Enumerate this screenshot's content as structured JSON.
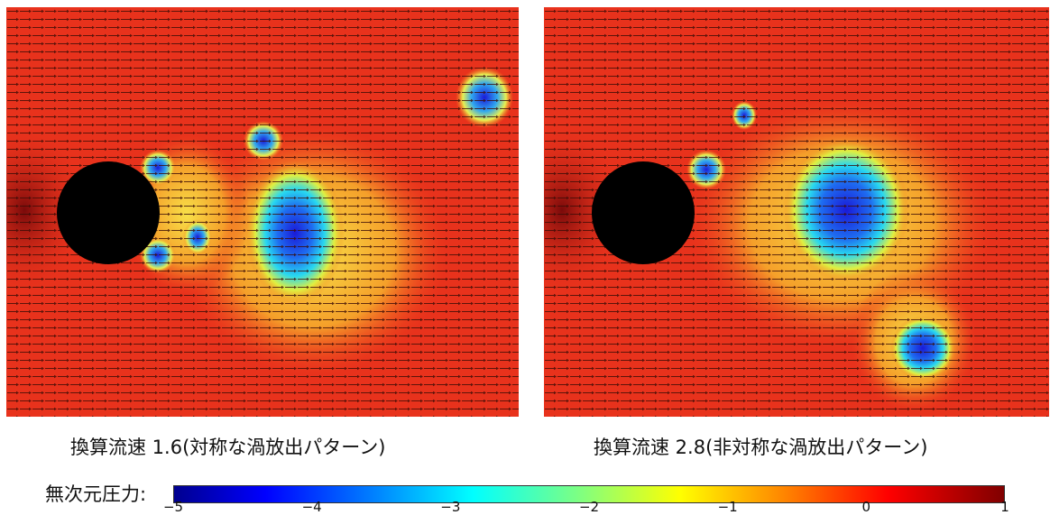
{
  "panels": [
    {
      "caption": "換算流速 1.6(対称な渦放出パターン)"
    },
    {
      "caption": "換算流速 2.8(非対称な渦放出パターン)"
    }
  ],
  "colorbar": {
    "label": "無次元圧力:",
    "ticks": [
      "−5",
      "−4",
      "−3",
      "−2",
      "−1",
      "0",
      "1"
    ],
    "min": -5,
    "max": 1
  },
  "colors": {
    "background_field": "#e8321c",
    "cylinder": "#000000",
    "vortex_core": "#1e28d8"
  }
}
